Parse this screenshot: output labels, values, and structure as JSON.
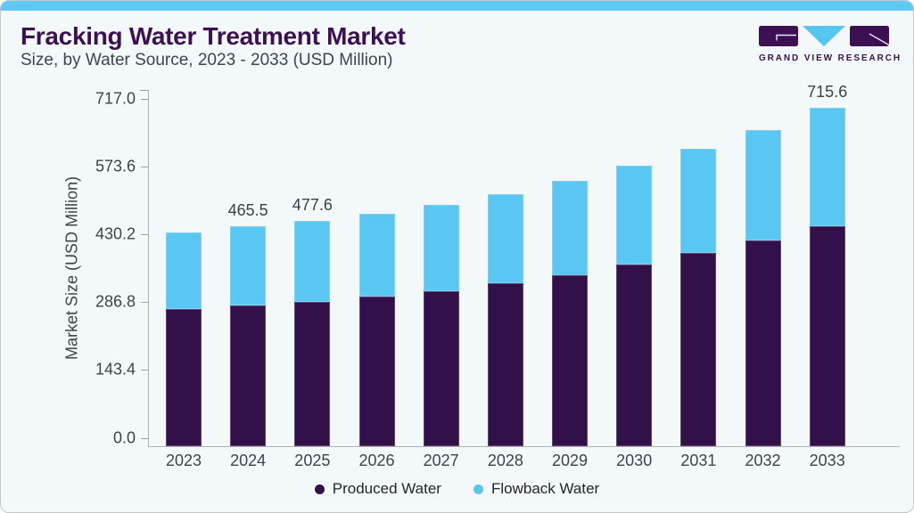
{
  "header": {
    "title": "Fracking Water Treatment Market",
    "subtitle": "Size, by Water Source, 2023 - 2033 (USD Million)"
  },
  "logo": {
    "text": "GRAND VIEW RESEARCH",
    "purple": "#3c1053",
    "cyan": "#55c6f0"
  },
  "chart_data": {
    "type": "bar",
    "stacked": true,
    "title": "Fracking Water Treatment Market Size, by Water Source, 2023 - 2033 (USD Million)",
    "ylabel": "Market Size (USD Million)",
    "ylim": [
      0,
      717
    ],
    "ytick_labels": [
      "717.0",
      "573.6",
      "430.2",
      "286.8",
      "143.4",
      "0.0"
    ],
    "grid": false,
    "legend_position": "bottom",
    "categories": [
      "2023",
      "2024",
      "2025",
      "2026",
      "2027",
      "2028",
      "2029",
      "2030",
      "2031",
      "2032",
      "2033"
    ],
    "series": [
      {
        "name": "Produced Water",
        "color": "#33104a",
        "values": [
          290.9,
          297.3,
          305.4,
          316.1,
          328.6,
          344.4,
          361.9,
          384.5,
          408.5,
          434.9,
          466.2
        ]
      },
      {
        "name": "Flowback Water",
        "color": "#5ac7f2",
        "values": [
          162.1,
          168.2,
          172.2,
          175.9,
          181.7,
          189.1,
          199.8,
          208.7,
          221.1,
          234.3,
          249.4
        ]
      }
    ],
    "totals": [
      453.0,
      465.5,
      477.6,
      492.0,
      510.3,
      533.5,
      561.7,
      593.2,
      629.6,
      669.2,
      715.6
    ],
    "total_labels": [
      "",
      "465.5",
      "477.6",
      "",
      "",
      "",
      "",
      "",
      "",
      "",
      "715.6"
    ]
  }
}
